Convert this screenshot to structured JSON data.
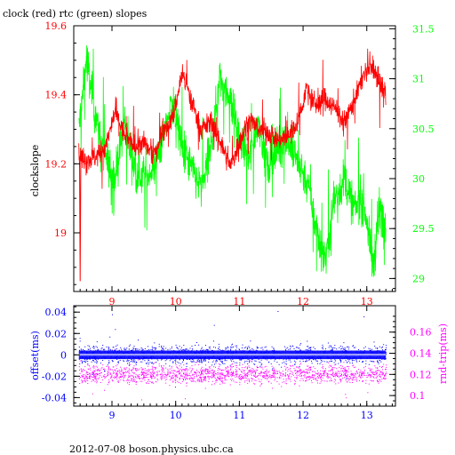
{
  "title": "clock (red) rtc (green) slopes",
  "footer": "2012-07-08  boson.physics.ubc.ca",
  "colors": {
    "clock": "#ff0000",
    "rtc": "#00ff00",
    "offset": "#0000ff",
    "rndtrip": "#ff00ff",
    "axis": "#000000"
  },
  "chart_data": [
    {
      "type": "line",
      "xlim": [
        8.4,
        13.45
      ],
      "x_ticks": [
        "9",
        "10",
        "11",
        "12",
        "13"
      ],
      "ylabel": "clockslope",
      "ylim": [
        18.83,
        19.6
      ],
      "y_ticks": [
        "19",
        "19.2",
        "19.4",
        "19.6"
      ],
      "y2lim": [
        28.87,
        31.53
      ],
      "y2_ticks": [
        "29",
        "29.5",
        "30",
        "30.5",
        "31",
        "31.5"
      ],
      "series": [
        {
          "name": "clock (red)",
          "x": [
            8.48,
            8.6,
            8.75,
            8.9,
            9.05,
            9.2,
            9.35,
            9.5,
            9.65,
            9.8,
            9.95,
            10.1,
            10.25,
            10.4,
            10.55,
            10.7,
            10.85,
            11.0,
            11.15,
            11.3,
            11.45,
            11.6,
            11.75,
            11.9,
            12.05,
            12.2,
            12.35,
            12.5,
            12.65,
            12.8,
            12.95,
            13.1,
            13.2,
            13.3
          ],
          "values": [
            19.22,
            19.21,
            19.22,
            19.25,
            19.35,
            19.28,
            19.25,
            19.26,
            19.22,
            19.3,
            19.33,
            19.46,
            19.38,
            19.3,
            19.32,
            19.27,
            19.19,
            19.26,
            19.33,
            19.3,
            19.29,
            19.27,
            19.28,
            19.31,
            19.42,
            19.37,
            19.39,
            19.36,
            19.32,
            19.38,
            19.46,
            19.48,
            19.43,
            19.4
          ]
        },
        {
          "name": "rtc (green)",
          "x": [
            8.48,
            8.6,
            8.75,
            8.9,
            9.05,
            9.2,
            9.35,
            9.5,
            9.65,
            9.8,
            9.95,
            10.1,
            10.25,
            10.4,
            10.55,
            10.7,
            10.85,
            11.0,
            11.15,
            11.3,
            11.45,
            11.6,
            11.75,
            11.9,
            12.05,
            12.2,
            12.35,
            12.5,
            12.65,
            12.8,
            12.95,
            13.1,
            13.2,
            13.3
          ],
          "values": [
            30.5,
            31.2,
            30.6,
            30.2,
            30.0,
            30.6,
            30.1,
            30.0,
            30.1,
            30.4,
            30.8,
            30.3,
            30.1,
            29.9,
            30.3,
            31.0,
            30.8,
            30.4,
            30.2,
            30.6,
            30.1,
            30.3,
            30.4,
            30.2,
            30.0,
            29.5,
            29.2,
            29.8,
            30.0,
            29.7,
            29.8,
            29.1,
            29.7,
            29.55
          ]
        }
      ]
    },
    {
      "type": "scatter",
      "xlim": [
        8.4,
        13.45
      ],
      "x_ticks": [
        "9",
        "10",
        "11",
        "12",
        "13"
      ],
      "ylabel": "offset(ms)",
      "ylim": [
        -0.048,
        0.046
      ],
      "y_ticks": [
        "0.04",
        "0.02",
        "0",
        "-0.02",
        "-0.04"
      ],
      "y2label": "rnd-trip(ms)",
      "y2lim": [
        0.09,
        0.185
      ],
      "y2_ticks": [
        "0.16",
        "0.14",
        "0.12",
        "0.1"
      ],
      "series": [
        {
          "name": "offset(ms)",
          "x_range": [
            8.48,
            13.3
          ],
          "center": 0.0,
          "spread": 0.008
        },
        {
          "name": "rnd-trip(ms)",
          "x_range": [
            8.48,
            13.3
          ],
          "center": 0.12,
          "spread": 0.008
        }
      ]
    }
  ]
}
